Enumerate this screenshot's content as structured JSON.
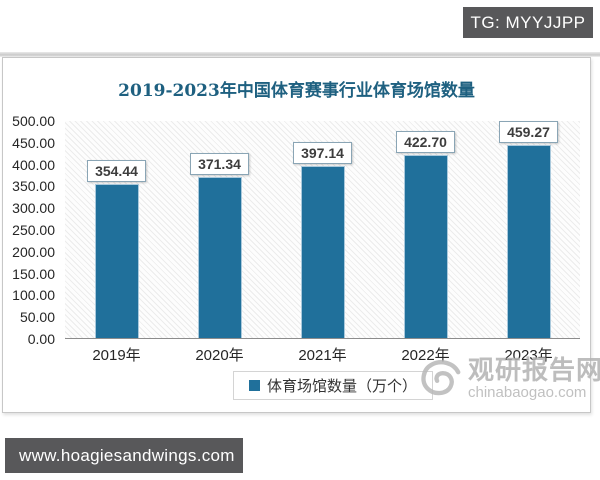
{
  "page": {
    "tg_badge": "TG: MYYJJPP",
    "footer_url": "www.hoagiesandwings.com"
  },
  "watermark": {
    "site_name": "观研报告网",
    "site_domain": "chinabaogao.com"
  },
  "chart_data": {
    "type": "bar",
    "title": "2019-2023年中国体育赛事行业体育场馆数量",
    "categories": [
      "2019年",
      "2020年",
      "2021年",
      "2022年",
      "2023年"
    ],
    "values": [
      354.44,
      371.34,
      397.14,
      422.7,
      459.27
    ],
    "value_labels": [
      "354.44",
      "371.34",
      "397.14",
      "422.70",
      "459.27"
    ],
    "series_name": "体育场馆数量（万个）",
    "legend": {
      "label": "体育场馆数量（万个）",
      "position": "bottom"
    },
    "ylim": [
      0,
      500
    ],
    "ytick_step": 50,
    "ytick_labels": [
      "500.00",
      "450.00",
      "400.00",
      "350.00",
      "300.00",
      "250.00",
      "200.00",
      "150.00",
      "100.00",
      "50.00",
      "0.00"
    ],
    "grid": false,
    "bar_color": "#20709b",
    "title_color": "#1e6080"
  }
}
